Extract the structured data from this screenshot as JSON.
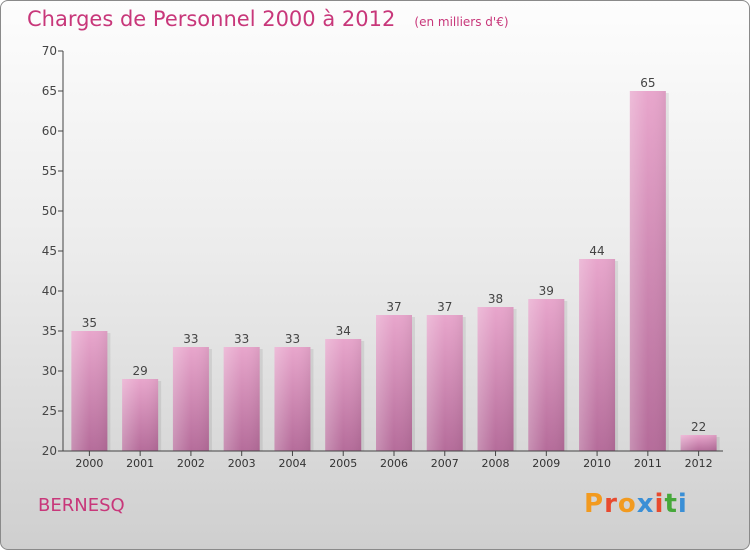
{
  "header": {
    "title": "Charges de Personnel 2000 à 2012",
    "unit": "(en milliers d'€)"
  },
  "footer": {
    "commune": "BERNESQ",
    "logo": [
      "P",
      "r",
      "o",
      "x",
      "i",
      "t",
      "i"
    ]
  },
  "colors": {
    "accent": "#c8377a",
    "bar_top": "#e8a6cc",
    "bar_bottom": "#b56c9a"
  },
  "chart_data": {
    "type": "bar",
    "categories": [
      "2000",
      "2001",
      "2002",
      "2003",
      "2004",
      "2005",
      "2006",
      "2007",
      "2008",
      "2009",
      "2010",
      "2011",
      "2012"
    ],
    "values": [
      35,
      29,
      33,
      33,
      33,
      34,
      37,
      37,
      38,
      39,
      44,
      65,
      22
    ],
    "data_labels": [
      "35",
      "29",
      "33",
      "33",
      "33",
      "34",
      "37",
      "37",
      "38",
      "39",
      "44",
      "65",
      "22"
    ],
    "title": "Charges de Personnel 2000 à 2012",
    "ylim": [
      20,
      70
    ],
    "yticks": [
      20,
      25,
      30,
      35,
      40,
      45,
      50,
      55,
      60,
      65,
      70
    ],
    "grid": false,
    "legend": "none"
  }
}
